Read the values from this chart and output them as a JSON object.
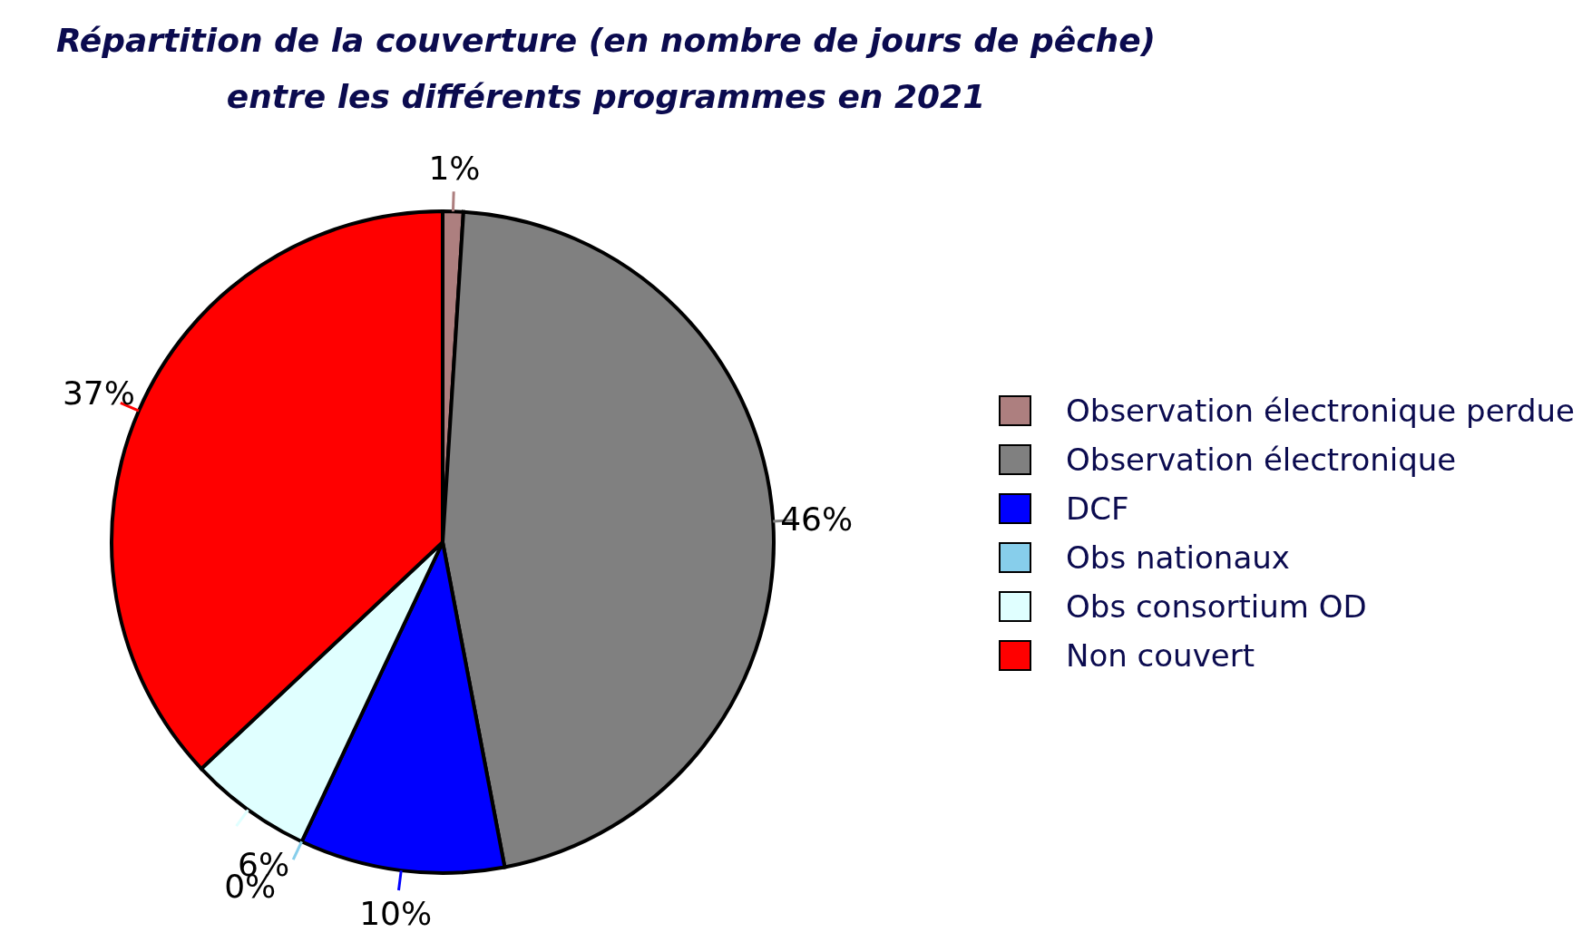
{
  "chart_data": {
    "type": "pie",
    "title": "Répartition de la couverture (en nombre de jours de pêche) entre les différents programmes en 2021",
    "categories": [
      "Observation électronique perdue",
      "Observation électronique",
      "DCF",
      "Obs nationaux",
      "Obs consortium OD",
      "Non couvert"
    ],
    "values": [
      1,
      46,
      10,
      0,
      6,
      37
    ],
    "value_labels": [
      "1%",
      "46%",
      "10%",
      "0%",
      "6%",
      "37%"
    ],
    "colors": [
      "#ad7f7f",
      "#808080",
      "#0000ff",
      "#87ceeb",
      "#e0ffff",
      "#ff0000"
    ],
    "legend": "right"
  }
}
